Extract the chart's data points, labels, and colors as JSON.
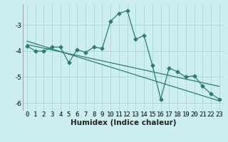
{
  "xlabel": "Humidex (Indice chaleur)",
  "background_color": "#cceef0",
  "grid_color": "#aad8dc",
  "line_color": "#2e7d6e",
  "x_data": [
    0,
    1,
    2,
    3,
    4,
    5,
    6,
    7,
    8,
    9,
    10,
    11,
    12,
    13,
    14,
    15,
    16,
    17,
    18,
    19,
    20,
    21,
    22,
    23
  ],
  "y_data1": [
    -3.8,
    -4.0,
    -4.0,
    -3.85,
    -3.85,
    -4.45,
    -3.95,
    -4.05,
    -3.85,
    -3.9,
    -2.85,
    -2.55,
    -2.45,
    -3.55,
    -3.4,
    -4.55,
    -5.85,
    -4.65,
    -4.8,
    -5.0,
    -4.95,
    -5.35,
    -5.65,
    -5.85
  ],
  "y_trend1": [
    -3.75,
    -3.82,
    -3.89,
    -3.96,
    -4.03,
    -4.1,
    -4.17,
    -4.24,
    -4.31,
    -4.38,
    -4.45,
    -4.52,
    -4.59,
    -4.66,
    -4.73,
    -4.8,
    -4.87,
    -4.94,
    -5.01,
    -5.08,
    -5.15,
    -5.22,
    -5.29,
    -5.36
  ],
  "y_trend2": [
    -3.62,
    -3.72,
    -3.82,
    -3.92,
    -4.02,
    -4.12,
    -4.22,
    -4.32,
    -4.42,
    -4.52,
    -4.62,
    -4.72,
    -4.82,
    -4.92,
    -5.02,
    -5.12,
    -5.22,
    -5.32,
    -5.42,
    -5.52,
    -5.62,
    -5.72,
    -5.82,
    -5.92
  ],
  "ylim": [
    -6.3,
    -2.2
  ],
  "xlim": [
    -0.5,
    23.5
  ],
  "yticks": [
    -6,
    -5,
    -4,
    -3
  ],
  "xticks": [
    0,
    1,
    2,
    3,
    4,
    5,
    6,
    7,
    8,
    9,
    10,
    11,
    12,
    13,
    14,
    15,
    16,
    17,
    18,
    19,
    20,
    21,
    22,
    23
  ],
  "marker_size": 2.5,
  "line_width": 0.9,
  "tick_fontsize": 6.5,
  "xlabel_fontsize": 7.5
}
